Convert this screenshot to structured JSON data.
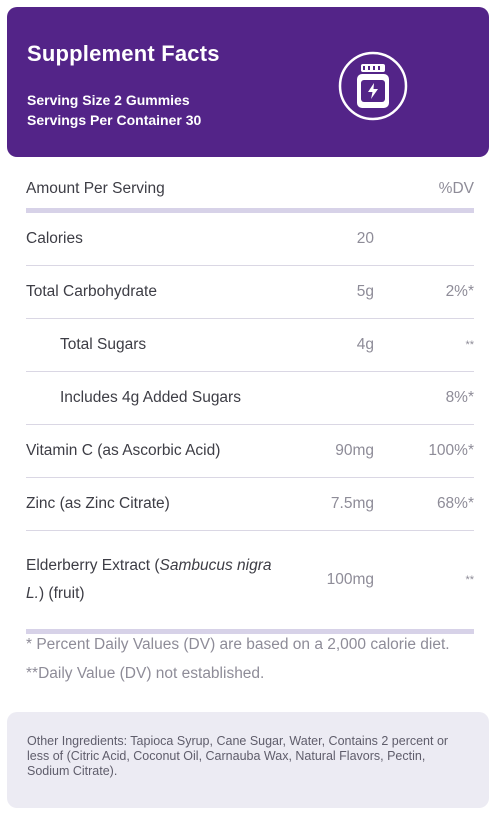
{
  "header": {
    "title": "Supplement Facts",
    "serving_size": "Serving Size 2 Gummies",
    "servings_per_container": "Servings Per Container 30",
    "icon": "supplement-jar-icon"
  },
  "table": {
    "amount_label": "Amount Per Serving",
    "dv_label": "%DV",
    "rows": [
      {
        "name": "Calories",
        "amount": "20",
        "dv": ""
      },
      {
        "name": "Total Carbohydrate",
        "amount": "5g",
        "dv": "2%*"
      },
      {
        "name": "Total Sugars",
        "amount": "4g",
        "dv": "**"
      },
      {
        "name": "Includes 4g Added Sugars",
        "amount": "",
        "dv": "8%*"
      },
      {
        "name": "Vitamin C (as Ascorbic Acid)",
        "amount": "90mg",
        "dv": "100%*"
      },
      {
        "name": "Zinc (as Zinc Citrate)",
        "amount": "7.5mg",
        "dv": "68%*"
      },
      {
        "name_prefix": "Elderberry Extract (",
        "name_italic": "Sambucus nigra L.",
        "name_suffix": ") (fruit)",
        "amount": "100mg",
        "dv": "**"
      }
    ]
  },
  "footnote": "* Percent Daily Values (DV) are based on a 2,000 calorie diet. **Daily Value (DV) not established.",
  "other_ingredients": "Other Ingredients: Tapioca Syrup, Cane Sugar, Water, Contains 2 percent or less of (Citric Acid, Coconut Oil, Carnauba Wax, Natural Flavors, Pectin, Sodium Citrate).",
  "colors": {
    "header_bg": "#532488",
    "ingredients_bg": "#ecebf3",
    "divider": "#d7d2e8"
  }
}
